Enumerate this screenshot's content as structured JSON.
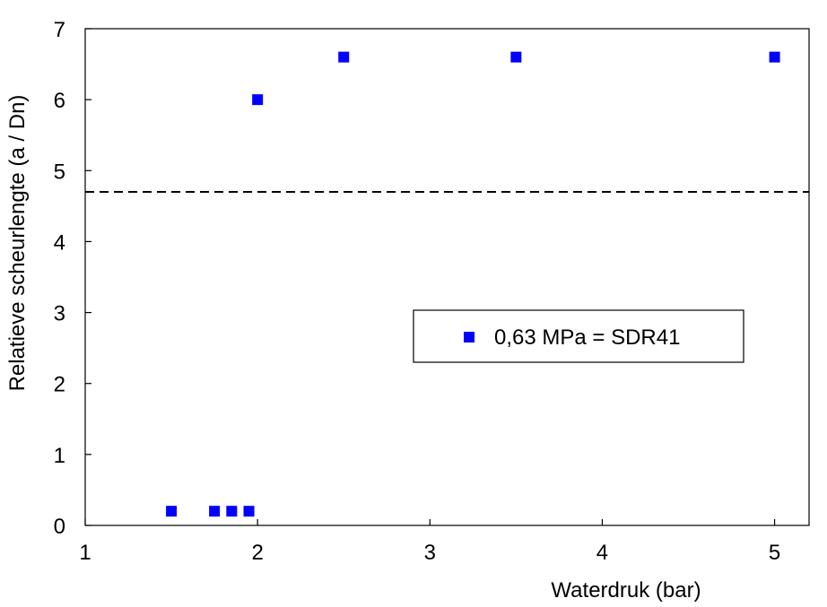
{
  "chart_data": {
    "type": "scatter",
    "xlabel": "Waterdruk (bar)",
    "ylabel": "Relatieve scheurlengte (a / Dn)",
    "xlim": [
      1,
      5.2
    ],
    "ylim": [
      0,
      7
    ],
    "xticks": [
      1,
      2,
      3,
      4,
      5
    ],
    "yticks": [
      0,
      1,
      2,
      3,
      4,
      5,
      6,
      7
    ],
    "grid": false,
    "legend_position": "center-right",
    "series": [
      {
        "name": "0,63 MPa = SDR41",
        "color": "#0000ff",
        "marker": "square",
        "x": [
          1.5,
          1.75,
          1.85,
          1.95,
          2.0,
          2.5,
          3.5,
          5.0
        ],
        "y": [
          0.2,
          0.2,
          0.2,
          0.2,
          6.0,
          6.6,
          6.6,
          6.6
        ]
      }
    ],
    "reference_line": {
      "y": 4.7,
      "style": "dashed",
      "color": "#000000"
    }
  }
}
